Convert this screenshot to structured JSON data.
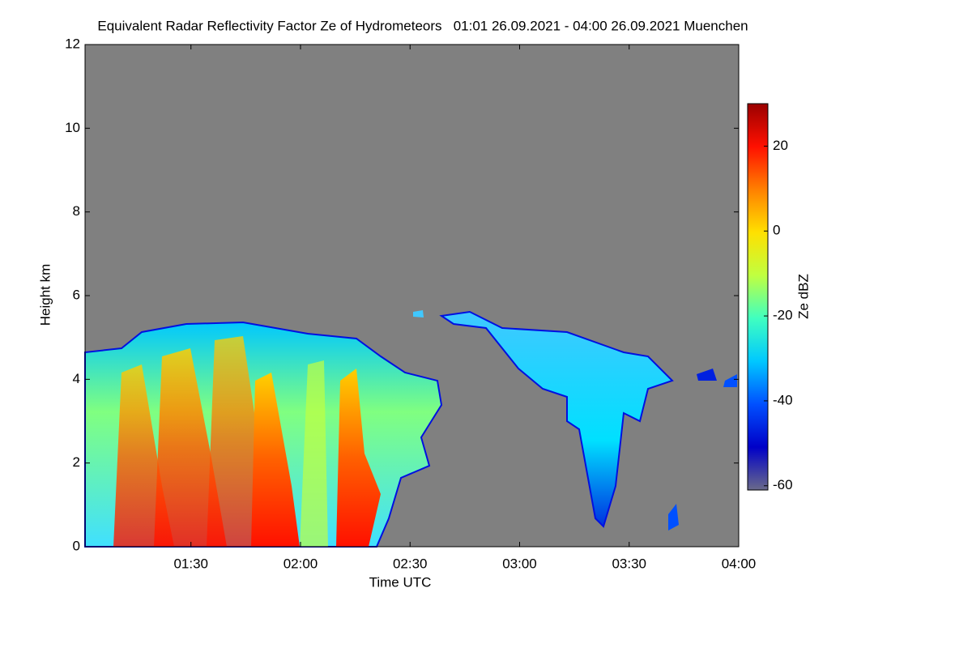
{
  "chart_data": {
    "type": "heatmap",
    "title": "Equivalent Radar Reflectivity Factor Ze of Hydrometeors   01:01 26.09.2021 - 04:00 26.09.2021 Muenchen",
    "x_label": "Time UTC",
    "y_label": "Height km",
    "colorbar_label": "Ze dBZ",
    "xlim": [
      61,
      240
    ],
    "xticks": [
      {
        "value": 90,
        "label": "01:30"
      },
      {
        "value": 120,
        "label": "02:00"
      },
      {
        "value": 150,
        "label": "02:30"
      },
      {
        "value": 180,
        "label": "03:00"
      },
      {
        "value": 210,
        "label": "03:30"
      },
      {
        "value": 240,
        "label": "04:00"
      }
    ],
    "ylim": [
      0,
      12
    ],
    "yticks": [
      0,
      2,
      4,
      6,
      8,
      10,
      12
    ],
    "zlim": [
      -61,
      30
    ],
    "zticks": [
      -60,
      -40,
      -20,
      0,
      20
    ],
    "background": "#808080",
    "colormap": [
      "#6a6a8a",
      "#0000c8",
      "#0050ff",
      "#00c8ff",
      "#40ffc0",
      "#c0ff40",
      "#ffe000",
      "#ff8000",
      "#ff1000",
      "#9a0000"
    ]
  }
}
